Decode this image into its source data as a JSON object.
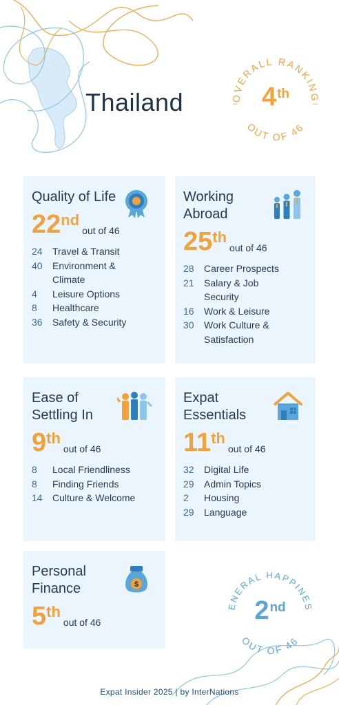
{
  "country": "Thailand",
  "colors": {
    "accent_orange": "#f2a23a",
    "accent_blue": "#5aa6d9",
    "card_bg": "#eaf5fd",
    "text_dark": "#1f3347"
  },
  "overall": {
    "top": "OVERALL RANKING",
    "rank": "4",
    "suffix": "th",
    "bottom": "OUT OF 46"
  },
  "happiness": {
    "top": "GENERAL HAPPINESS",
    "rank": "2",
    "suffix": "nd",
    "bottom": "OUT OF 46"
  },
  "cards": [
    {
      "title": "Quality of Life",
      "icon": "medal-icon",
      "rank": "22",
      "suffix": "nd",
      "out_of": "out of 46",
      "items": [
        {
          "rank": "24",
          "label": "Travel & Transit"
        },
        {
          "rank": "40",
          "label": "Environment & Climate"
        },
        {
          "rank": "4",
          "label": "Leisure Options"
        },
        {
          "rank": "8",
          "label": "Healthcare"
        },
        {
          "rank": "36",
          "label": "Safety & Security"
        }
      ]
    },
    {
      "title": "Working Abroad",
      "icon": "workers-icon",
      "rank": "25",
      "suffix": "th",
      "out_of": "out of 46",
      "items": [
        {
          "rank": "28",
          "label": "Career Prospects"
        },
        {
          "rank": "21",
          "label": "Salary & Job Security"
        },
        {
          "rank": "16",
          "label": "Work & Leisure"
        },
        {
          "rank": "30",
          "label": "Work Culture & Satisfaction"
        }
      ]
    },
    {
      "title": "Ease of Settling In",
      "icon": "people-group-icon",
      "rank": "9",
      "suffix": "th",
      "out_of": "out of 46",
      "items": [
        {
          "rank": "8",
          "label": "Local Friendliness"
        },
        {
          "rank": "8",
          "label": "Finding Friends"
        },
        {
          "rank": "14",
          "label": "Culture & Welcome"
        }
      ]
    },
    {
      "title": "Expat Essentials",
      "icon": "house-icon",
      "rank": "11",
      "suffix": "th",
      "out_of": "out of 46",
      "items": [
        {
          "rank": "32",
          "label": "Digital Life"
        },
        {
          "rank": "29",
          "label": "Admin Topics"
        },
        {
          "rank": "2",
          "label": "Housing"
        },
        {
          "rank": "29",
          "label": "Language"
        }
      ]
    },
    {
      "title": "Personal Finance",
      "icon": "money-bag-icon",
      "rank": "5",
      "suffix": "th",
      "out_of": "out of 46",
      "items": []
    }
  ],
  "footer": "Expat Insider 2025  |  by InterNations"
}
